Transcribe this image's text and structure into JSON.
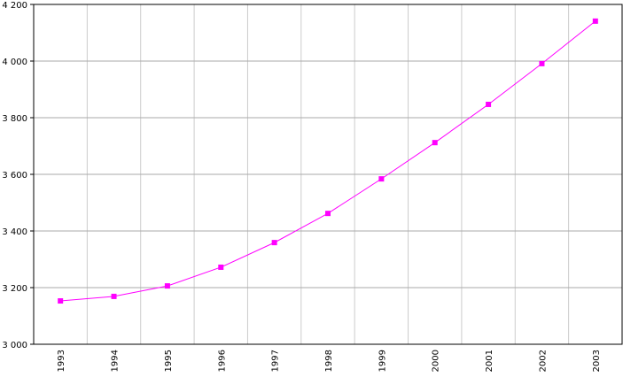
{
  "chart_data": {
    "type": "line",
    "categories": [
      "1993",
      "1994",
      "1995",
      "1996",
      "1997",
      "1998",
      "1999",
      "2000",
      "2001",
      "2002",
      "2003"
    ],
    "series": [
      {
        "color": "#ff00ff",
        "values": [
          3153,
          3169,
          3206,
          3272,
          3359,
          3462,
          3584,
          3712,
          3847,
          3991,
          4141
        ]
      }
    ],
    "ylim": [
      3000,
      4200
    ],
    "yticks": [
      {
        "value": 3000,
        "label": "3 000"
      },
      {
        "value": 3200,
        "label": "3 200"
      },
      {
        "value": 3400,
        "label": "3 400"
      },
      {
        "value": 3600,
        "label": "3 600"
      },
      {
        "value": 3800,
        "label": "3 800"
      },
      {
        "value": 4000,
        "label": "4 000"
      },
      {
        "value": 4200,
        "label": "4 200"
      }
    ],
    "grid": true
  }
}
